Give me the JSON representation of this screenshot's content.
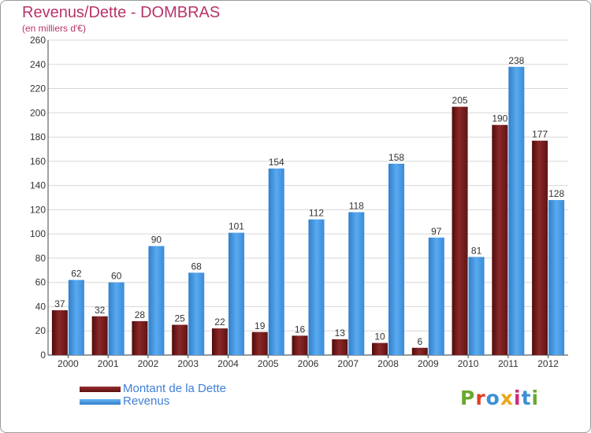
{
  "title": "Revenus/Dette - DOMBRAS",
  "subtitle": "(en milliers d'€)",
  "legend": {
    "items": [
      {
        "label": "Montant de la Dette",
        "color": "#7a1c1c"
      },
      {
        "label": "Revenus",
        "color": "#3d8fd8"
      }
    ]
  },
  "logo": {
    "letters": [
      "P",
      "r",
      "o",
      "x",
      "i",
      "t",
      "i"
    ],
    "colors": [
      "#6aa82e",
      "#e0402a",
      "#3a8fd6",
      "#e8a71c",
      "#d02a7a",
      "#3a8fd6",
      "#6aa82e"
    ]
  },
  "chart_data": {
    "type": "bar",
    "categories": [
      "2000",
      "2001",
      "2002",
      "2003",
      "2004",
      "2005",
      "2006",
      "2007",
      "2008",
      "2009",
      "2010",
      "2011",
      "2012"
    ],
    "series": [
      {
        "name": "Montant de la Dette",
        "values": [
          37,
          32,
          28,
          25,
          22,
          19,
          16,
          13,
          10,
          6,
          205,
          190,
          177
        ],
        "color": "#7a1c1c"
      },
      {
        "name": "Revenus",
        "values": [
          62,
          60,
          90,
          68,
          101,
          154,
          112,
          118,
          158,
          97,
          81,
          238,
          128
        ],
        "color": "#3d8fd8"
      }
    ],
    "y_ticks": [
      0,
      20,
      40,
      60,
      80,
      100,
      120,
      140,
      160,
      180,
      200,
      220,
      240,
      260
    ],
    "ylim": [
      0,
      260
    ],
    "grid": true,
    "legend_position": "bottom-left"
  }
}
